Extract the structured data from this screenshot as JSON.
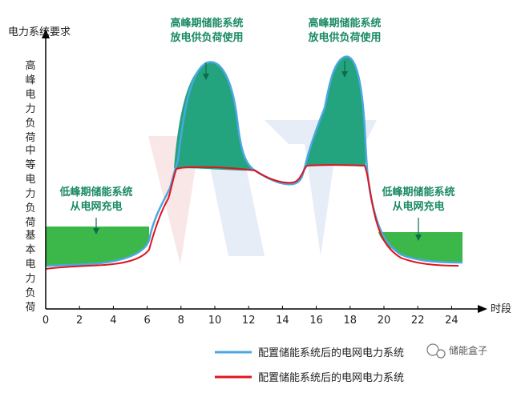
{
  "axes": {
    "y_title": "电力系统要求",
    "x_title": "时段",
    "x_ticks": [
      "0",
      "2",
      "4",
      "6",
      "8",
      "10",
      "12",
      "14",
      "16",
      "18",
      "20",
      "22",
      "24"
    ],
    "y_levels": [
      {
        "label": "高峰电力负荷"
      },
      {
        "label": "中等电力负荷"
      },
      {
        "label": "基本电力负荷"
      }
    ]
  },
  "annotations": {
    "peak1": {
      "line1": "高峰期储能系统",
      "line2": "放电供负荷使用"
    },
    "peak2": {
      "line1": "高峰期储能系统",
      "line2": "放电供负荷使用"
    },
    "valley1": {
      "line1": "低峰期储能系统",
      "line2": "从电网充电"
    },
    "valley2": {
      "line1": "低峰期储能系统",
      "line2": "从电网充电"
    }
  },
  "legend": [
    {
      "label": "配置储能系统后的电网电力系统",
      "color": "#4aa8e0"
    },
    {
      "label": "配置储能系统后的电网电力系统",
      "color": "#e0141e"
    }
  ],
  "watermark": {
    "text": "储能盒子"
  },
  "colors": {
    "discharge_fill": "#23a37e",
    "charge_fill": "#3cb84a",
    "blue_line": "#4aa8e0",
    "red_line": "#e0141e",
    "axis": "#000000",
    "annotation_text": "#1a8a66"
  }
}
